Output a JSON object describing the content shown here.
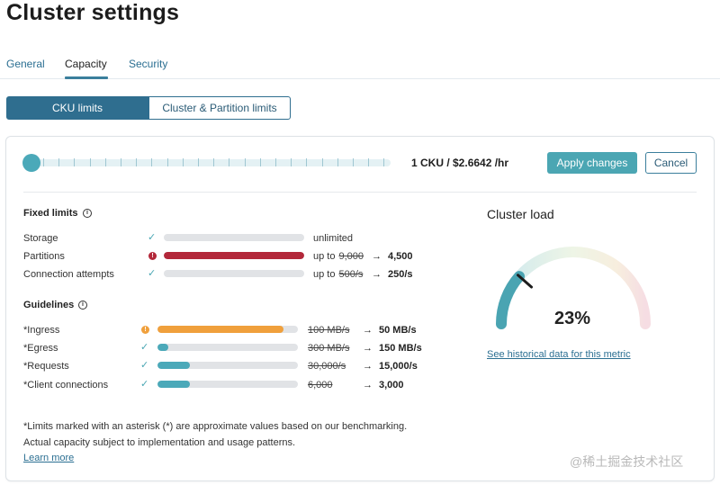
{
  "page": {
    "title": "Cluster settings"
  },
  "tabs": [
    {
      "label": "General",
      "active": false
    },
    {
      "label": "Capacity",
      "active": true
    },
    {
      "label": "Security",
      "active": false
    }
  ],
  "segmented": {
    "left": "CKU limits",
    "right": "Cluster & Partition limits",
    "selected": "left"
  },
  "slider": {
    "price_label": "1 CKU / $2.6642 /hr",
    "value": 1
  },
  "actions": {
    "apply": "Apply changes",
    "cancel": "Cancel"
  },
  "fixed_limits": {
    "heading": "Fixed limits",
    "rows": [
      {
        "label": "Storage",
        "status": "ok",
        "fill": 0,
        "prefix": "",
        "old": "",
        "arrow": "",
        "new": "",
        "text": "unlimited"
      },
      {
        "label": "Partitions",
        "status": "error",
        "fill": 1.0,
        "prefix": "up to",
        "old": "9,000",
        "arrow": "→",
        "new": "4,500",
        "text": ""
      },
      {
        "label": "Connection attempts",
        "status": "ok",
        "fill": 0,
        "prefix": "up to",
        "old": "500/s",
        "arrow": "→",
        "new": "250/s",
        "text": ""
      }
    ]
  },
  "guidelines": {
    "heading": "Guidelines",
    "rows": [
      {
        "label": "*Ingress",
        "status": "warning",
        "fill": 0.9,
        "old": "100 MB/s",
        "arrow": "→",
        "new": "50 MB/s"
      },
      {
        "label": "*Egress",
        "status": "ok",
        "fill": 0.08,
        "old": "300 MB/s",
        "arrow": "→",
        "new": "150 MB/s"
      },
      {
        "label": "*Requests",
        "status": "ok",
        "fill": 0.23,
        "old": "30,000/s",
        "arrow": "→",
        "new": "15,000/s"
      },
      {
        "label": "*Client connections",
        "status": "ok",
        "fill": 0.23,
        "old": "6,000",
        "arrow": "→",
        "new": "3,000"
      }
    ]
  },
  "footnote": {
    "line1": "*Limits marked with an asterisk (*) are approximate values based on our benchmarking.",
    "line2": "Actual capacity subject to implementation and usage patterns.",
    "link": "Learn more"
  },
  "cluster_load": {
    "title": "Cluster load",
    "value_label": "23%",
    "value": 0.23,
    "link": "See historical data for this metric"
  },
  "watermark": "@稀土掘金技术社区",
  "colors": {
    "primary": "#2f6e8f",
    "teal": "#4ba9b9",
    "error": "#b3283a",
    "warning": "#f0a03c",
    "link": "#2b6f92"
  },
  "icons": {
    "ok": "check-icon",
    "error": "error-icon",
    "warning": "warning-icon",
    "info": "info-icon"
  }
}
